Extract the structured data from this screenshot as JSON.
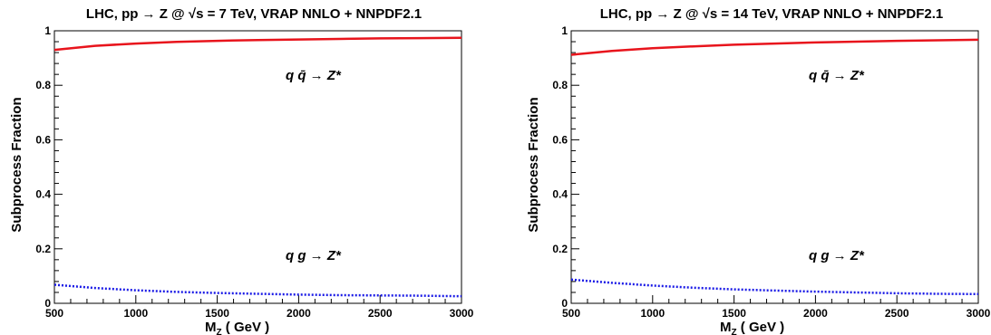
{
  "chart_data": [
    {
      "type": "line",
      "title": "LHC, pp → Z @ √s = 7 TeV, VRAP NNLO + NNPDF2.1",
      "xlabel": "M",
      "xlabel_sub": "Z",
      "xlabel_unit": " ( GeV )",
      "ylabel": "Subprocess Fraction",
      "xlim": [
        500,
        3000
      ],
      "ylim": [
        0,
        1
      ],
      "xticks": [
        "500",
        "1000",
        "1500",
        "2000",
        "2500",
        "3000"
      ],
      "yticks": [
        "0",
        "0.2",
        "0.4",
        "0.6",
        "0.8",
        "1"
      ],
      "grid": false,
      "annotations": [
        "q q̄ → Z*",
        "q g → Z*"
      ],
      "series": [
        {
          "style": "solid",
          "color": "#e8141c",
          "x": [
            500,
            750,
            1000,
            1250,
            1500,
            1750,
            2000,
            2250,
            2500,
            2750,
            3000
          ],
          "y": [
            0.93,
            0.945,
            0.953,
            0.959,
            0.963,
            0.966,
            0.968,
            0.97,
            0.972,
            0.973,
            0.974
          ]
        },
        {
          "style": "dotted",
          "color": "#1a1ae6",
          "x": [
            500,
            750,
            1000,
            1250,
            1500,
            1750,
            2000,
            2250,
            2500,
            2750,
            3000
          ],
          "y": [
            0.068,
            0.056,
            0.048,
            0.042,
            0.038,
            0.035,
            0.032,
            0.03,
            0.029,
            0.028,
            0.026
          ]
        }
      ]
    },
    {
      "type": "line",
      "title": "LHC, pp → Z @ √s = 14 TeV, VRAP NNLO + NNPDF2.1",
      "xlabel": "M",
      "xlabel_sub": "Z",
      "xlabel_unit": " ( GeV )",
      "ylabel": "Subprocess Fraction",
      "xlim": [
        500,
        3000
      ],
      "ylim": [
        0,
        1
      ],
      "xticks": [
        "500",
        "1000",
        "1500",
        "2000",
        "2500",
        "3000"
      ],
      "yticks": [
        "0",
        "0.2",
        "0.4",
        "0.6",
        "0.8",
        "1"
      ],
      "grid": false,
      "annotations": [
        "q q̄ → Z*",
        "q g → Z*"
      ],
      "series": [
        {
          "style": "solid",
          "color": "#e8141c",
          "x": [
            500,
            750,
            1000,
            1250,
            1500,
            1750,
            2000,
            2250,
            2500,
            2750,
            3000
          ],
          "y": [
            0.912,
            0.926,
            0.936,
            0.943,
            0.949,
            0.953,
            0.957,
            0.96,
            0.963,
            0.965,
            0.967
          ]
        },
        {
          "style": "dotted",
          "color": "#1a1ae6",
          "x": [
            500,
            750,
            1000,
            1250,
            1500,
            1750,
            2000,
            2250,
            2500,
            2750,
            3000
          ],
          "y": [
            0.087,
            0.075,
            0.065,
            0.057,
            0.051,
            0.047,
            0.043,
            0.04,
            0.037,
            0.035,
            0.034
          ]
        }
      ]
    }
  ]
}
